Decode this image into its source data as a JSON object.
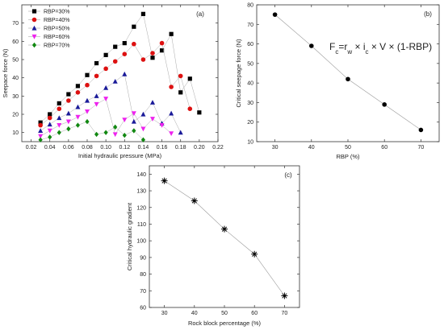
{
  "chart_data": [
    {
      "type": "line",
      "panel_label": "(a)",
      "xlabel": "Initial hydraulic pressure (MPa)",
      "ylabel": "Seepace force (N)",
      "xlim": [
        0.01,
        0.22
      ],
      "ylim": [
        5,
        80
      ],
      "xticks": [
        0.02,
        0.04,
        0.06,
        0.08,
        0.1,
        0.12,
        0.14,
        0.16,
        0.18,
        0.2,
        0.22
      ],
      "yticks": [
        10,
        20,
        30,
        40,
        50,
        60,
        70
      ],
      "legend_position": "top-left",
      "series": [
        {
          "name": "RBP=30%",
          "color": "#000000",
          "marker": "square",
          "x": [
            0.03,
            0.04,
            0.05,
            0.06,
            0.07,
            0.08,
            0.09,
            0.1,
            0.11,
            0.12,
            0.13,
            0.14,
            0.15,
            0.16,
            0.17,
            0.18,
            0.19,
            0.2
          ],
          "y": [
            15.5,
            20,
            26,
            31,
            35.5,
            41.5,
            48,
            52.5,
            57,
            59,
            68,
            75,
            51,
            55,
            64,
            32,
            39.5,
            21
          ]
        },
        {
          "name": "RBP=40%",
          "color": "#dd1111",
          "marker": "circle",
          "x": [
            0.03,
            0.04,
            0.05,
            0.06,
            0.07,
            0.08,
            0.09,
            0.1,
            0.11,
            0.12,
            0.13,
            0.14,
            0.15,
            0.16,
            0.17,
            0.18,
            0.19
          ],
          "y": [
            14,
            18,
            23,
            27.5,
            32,
            36,
            41,
            45,
            49,
            53,
            58.5,
            50,
            53.5,
            59,
            35,
            41,
            23
          ]
        },
        {
          "name": "RBP=50%",
          "color": "#1a1a99",
          "marker": "triangle-up",
          "x": [
            0.03,
            0.04,
            0.05,
            0.06,
            0.07,
            0.08,
            0.09,
            0.1,
            0.11,
            0.12,
            0.13,
            0.14,
            0.15,
            0.16,
            0.17,
            0.18
          ],
          "y": [
            11,
            14.5,
            18,
            20.5,
            24,
            27.5,
            30,
            34.5,
            38,
            42,
            16,
            20,
            26.5,
            15,
            20.5,
            10
          ]
        },
        {
          "name": "RBP=60%",
          "color": "#ee22ee",
          "marker": "triangle-down",
          "x": [
            0.03,
            0.04,
            0.05,
            0.06,
            0.07,
            0.08,
            0.09,
            0.1,
            0.11,
            0.12,
            0.13,
            0.14,
            0.15,
            0.16,
            0.17
          ],
          "y": [
            8,
            11,
            14,
            16,
            18.5,
            21.5,
            25.5,
            28.5,
            9,
            17,
            20.5,
            12,
            17.5,
            14,
            9.5
          ]
        },
        {
          "name": "RBP=70%",
          "color": "#118811",
          "marker": "diamond",
          "x": [
            0.03,
            0.04,
            0.05,
            0.06,
            0.07,
            0.08,
            0.09,
            0.1,
            0.11,
            0.12,
            0.13,
            0.14
          ],
          "y": [
            6,
            7.5,
            10,
            12,
            14,
            16,
            9,
            10,
            13,
            8.5,
            11,
            6
          ]
        }
      ]
    },
    {
      "type": "line",
      "panel_label": "(b)",
      "xlabel": "RBP (%)",
      "ylabel": "Critical seepage force (N)",
      "annotation": "F_c = r_w × i_c × V × (1-RBP)",
      "xlim": [
        25,
        75
      ],
      "ylim": [
        10,
        80
      ],
      "xticks": [
        30,
        40,
        50,
        60,
        70
      ],
      "yticks": [
        10,
        20,
        30,
        40,
        50,
        60,
        70,
        80
      ],
      "series": [
        {
          "color": "#000000",
          "marker": "circle",
          "x": [
            30,
            40,
            50,
            60,
            70
          ],
          "y": [
            75,
            59,
            42,
            29,
            16
          ]
        }
      ]
    },
    {
      "type": "line",
      "panel_label": "(c)",
      "xlabel": "Rock block percentage (%)",
      "ylabel": "Critical hydraulic gradient",
      "xlim": [
        25,
        75
      ],
      "ylim": [
        60,
        145
      ],
      "xticks": [
        30,
        40,
        50,
        60,
        70
      ],
      "yticks": [
        60,
        70,
        80,
        90,
        100,
        110,
        120,
        130,
        140
      ],
      "series": [
        {
          "color": "#000000",
          "marker": "asterisk",
          "x": [
            30,
            40,
            50,
            60,
            70
          ],
          "y": [
            136,
            124,
            107,
            92,
            67
          ]
        }
      ]
    }
  ]
}
